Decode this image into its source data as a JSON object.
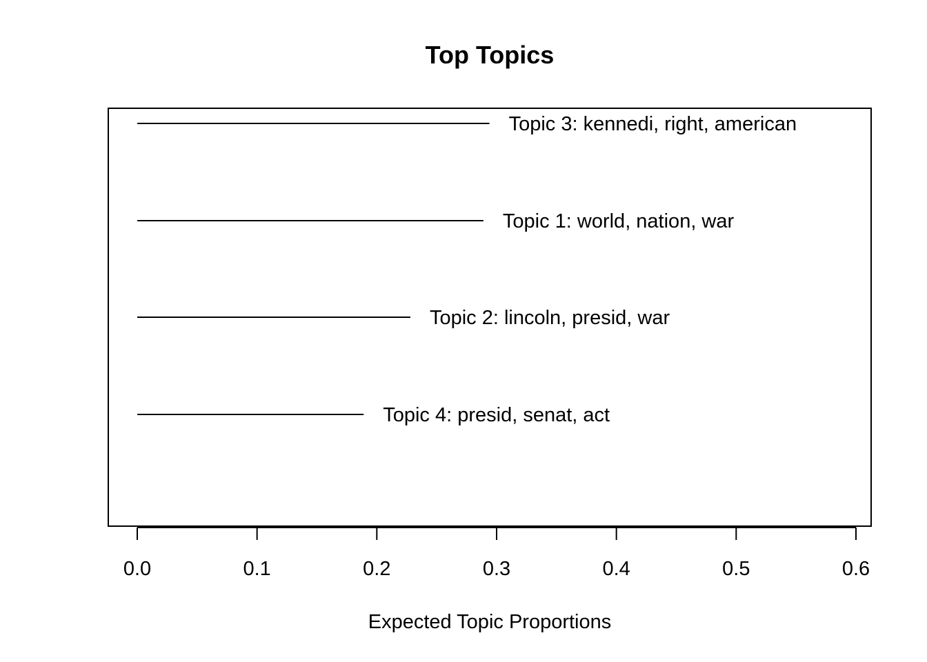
{
  "chart_data": {
    "type": "bar",
    "orientation": "horizontal",
    "title": "Top Topics",
    "xlabel": "Expected Topic Proportions",
    "ylabel": "",
    "xlim": [
      0,
      0.6
    ],
    "x_ticks": [
      "0.0",
      "0.1",
      "0.2",
      "0.3",
      "0.4",
      "0.5",
      "0.6"
    ],
    "tick_values": [
      0,
      0.1,
      0.2,
      0.3,
      0.4,
      0.5,
      0.6
    ],
    "grid": false,
    "categories": [
      "Topic 3: kennedi, right, american",
      "Topic 1: world, nation, war",
      "Topic 2: lincoln, presid, war",
      "Topic 4: presid, senat, act"
    ],
    "values": [
      0.294,
      0.289,
      0.228,
      0.189
    ]
  }
}
